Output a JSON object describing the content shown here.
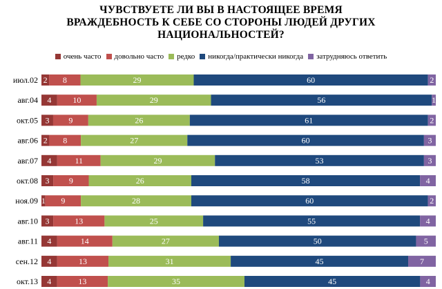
{
  "chart_data": {
    "type": "bar",
    "stacked": true,
    "orientation": "horizontal",
    "title_lines": [
      "ЧУВСТВУЕТЕ ЛИ ВЫ В НАСТОЯЩЕЕ ВРЕМЯ",
      "ВРАЖДЕБНОСТЬ К СЕБЕ СО СТОРОНЫ ЛЮДЕЙ ДРУГИХ",
      "НАЦИОНАЛЬНОСТЕЙ?"
    ],
    "legend_position": "top",
    "grid": false,
    "categories": [
      "июл.02",
      "авг.04",
      "окт.05",
      "авг.06",
      "авг.07",
      "окт.08",
      "ноя.09",
      "авг.10",
      "авг.11",
      "сен.12",
      "окт.13"
    ],
    "series": [
      {
        "name": "очень часто",
        "color": "#953735",
        "values": [
          2,
          4,
          3,
          2,
          4,
          3,
          1,
          3,
          4,
          4,
          4
        ]
      },
      {
        "name": "довольно часто",
        "color": "#c0504d",
        "values": [
          8,
          10,
          9,
          8,
          11,
          9,
          9,
          13,
          14,
          13,
          13
        ]
      },
      {
        "name": "редко",
        "color": "#9bbb59",
        "values": [
          29,
          29,
          26,
          27,
          29,
          26,
          28,
          25,
          27,
          31,
          35
        ]
      },
      {
        "name": "никогда/практически никогда",
        "color": "#1f497d",
        "values": [
          60,
          56,
          61,
          60,
          53,
          58,
          60,
          55,
          50,
          45,
          45
        ]
      },
      {
        "name": "затрудняюсь ответить",
        "color": "#8064a2",
        "values": [
          2,
          1,
          2,
          3,
          3,
          4,
          2,
          4,
          5,
          7,
          4
        ]
      }
    ]
  }
}
